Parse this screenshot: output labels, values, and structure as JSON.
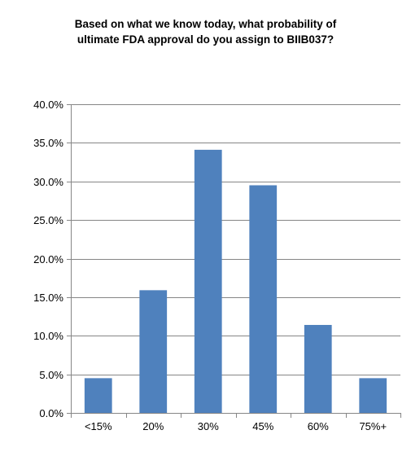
{
  "chart_data": {
    "type": "bar",
    "title_lines": [
      "Based on what we know today, what probability of",
      "ultimate FDA approval do you assign to BIIB037?"
    ],
    "categories": [
      "<15%",
      "20%",
      "30%",
      "45%",
      "60%",
      "75%+"
    ],
    "values": [
      4.5,
      15.9,
      34.1,
      29.5,
      11.4,
      4.5
    ],
    "yticks": [
      "0.0%",
      "5.0%",
      "10.0%",
      "15.0%",
      "20.0%",
      "25.0%",
      "30.0%",
      "35.0%",
      "40.0%"
    ],
    "ylim": [
      0,
      40
    ],
    "ytick_step": 5,
    "grid": true,
    "bar_color": "#4f81bd",
    "grid_color": "#868686"
  }
}
